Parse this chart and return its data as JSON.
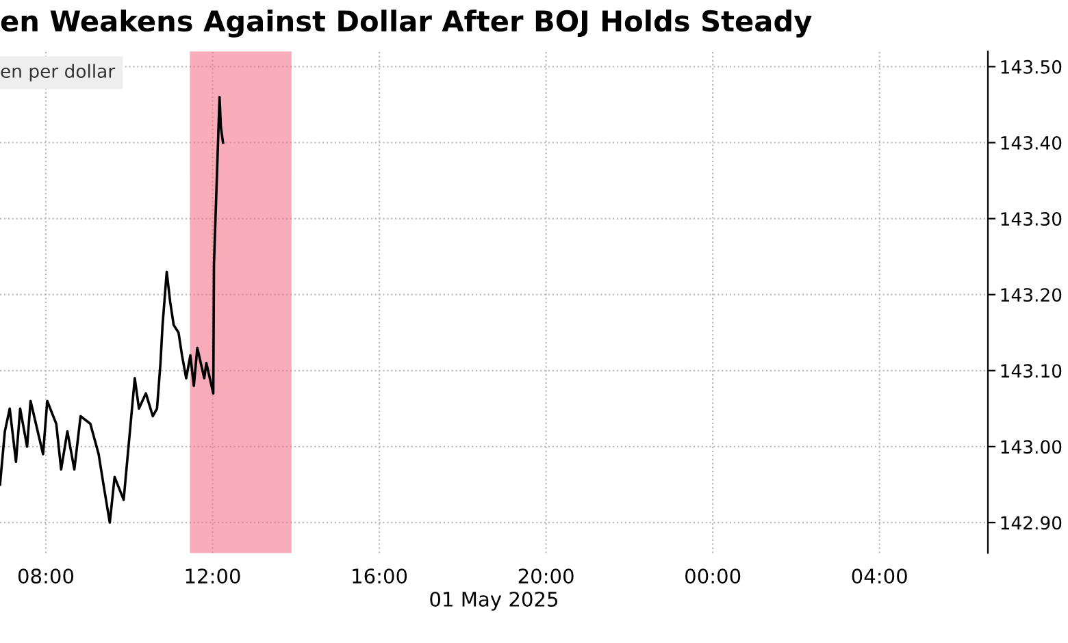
{
  "chart_data": {
    "type": "line",
    "title": "en Weakens Against Dollar After BOJ Holds Steady",
    "ylabel": "en per dollar",
    "xlabel": "01 May 2025",
    "x": [
      "2025-05-01T06:54",
      "2025-05-01T07:01",
      "2025-05-01T07:08",
      "2025-05-01T07:17",
      "2025-05-01T07:23",
      "2025-05-01T07:33",
      "2025-05-01T07:38",
      "2025-05-01T07:56",
      "2025-05-01T08:02",
      "2025-05-01T08:15",
      "2025-05-01T08:22",
      "2025-05-01T08:31",
      "2025-05-01T08:41",
      "2025-05-01T08:50",
      "2025-05-01T09:04",
      "2025-05-01T09:16",
      "2025-05-01T09:23",
      "2025-05-01T09:32",
      "2025-05-01T09:39",
      "2025-05-01T09:52",
      "2025-05-01T10:01",
      "2025-05-01T10:08",
      "2025-05-01T10:14",
      "2025-05-01T10:24",
      "2025-05-01T10:34",
      "2025-05-01T10:40",
      "2025-05-01T10:45",
      "2025-05-01T10:48",
      "2025-05-01T10:54",
      "2025-05-01T10:59",
      "2025-05-01T11:04",
      "2025-05-01T11:11",
      "2025-05-01T11:16",
      "2025-05-01T11:22",
      "2025-05-01T11:28",
      "2025-05-01T11:33",
      "2025-05-01T11:38",
      "2025-05-01T11:48",
      "2025-05-01T11:51",
      "2025-05-01T12:01",
      "2025-05-01T12:02",
      "2025-05-01T12:10",
      "2025-05-01T12:12",
      "2025-05-01T12:15"
    ],
    "series": [
      {
        "color": "#000000",
        "values": [
          142.95,
          143.02,
          143.05,
          142.98,
          143.05,
          143.0,
          143.06,
          142.99,
          143.06,
          143.03,
          142.97,
          143.02,
          142.97,
          143.04,
          143.03,
          142.99,
          142.95,
          142.9,
          142.96,
          142.93,
          143.02,
          143.09,
          143.05,
          143.07,
          143.04,
          143.05,
          143.11,
          143.16,
          143.23,
          143.19,
          143.16,
          143.15,
          143.12,
          143.09,
          143.12,
          143.08,
          143.13,
          143.09,
          143.11,
          143.07,
          143.24,
          143.46,
          143.42,
          143.4
        ]
      }
    ],
    "xlim": [
      "2025-05-01T06:54",
      "2025-05-02T06:36"
    ],
    "ylim": [
      142.86,
      143.52
    ],
    "xticks": [
      {
        "value": "2025-05-01T08:00",
        "label": "08:00"
      },
      {
        "value": "2025-05-01T12:00",
        "label": "12:00"
      },
      {
        "value": "2025-05-01T16:00",
        "label": "16:00"
      },
      {
        "value": "2025-05-01T20:00",
        "label": "20:00"
      },
      {
        "value": "2025-05-02T00:00",
        "label": "00:00"
      },
      {
        "value": "2025-05-02T04:00",
        "label": "04:00"
      }
    ],
    "yticks": [
      {
        "value": 142.9,
        "label": "142.90"
      },
      {
        "value": 143.0,
        "label": "143.00"
      },
      {
        "value": 143.1,
        "label": "143.10"
      },
      {
        "value": 143.2,
        "label": "143.20"
      },
      {
        "value": 143.3,
        "label": "143.30"
      },
      {
        "value": 143.4,
        "label": "143.40"
      },
      {
        "value": 143.5,
        "label": "143.50"
      }
    ],
    "bands": [
      {
        "axis": "x",
        "from": "2025-05-01T11:29",
        "to": "2025-05-01T13:52",
        "color": "#f46a82"
      }
    ],
    "grid": true,
    "line_style": "solid",
    "marker": "none"
  }
}
